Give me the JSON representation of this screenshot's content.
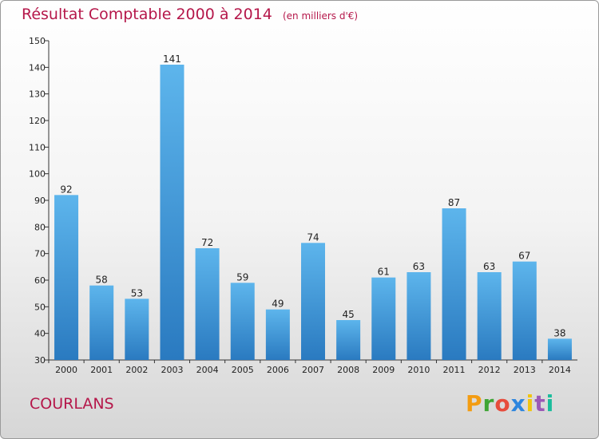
{
  "title": "Résultat Comptable 2000 à 2014",
  "subtitle": "(en milliers d'€)",
  "commune": "COURLANS",
  "logo": {
    "letters": [
      "P",
      "r",
      "o",
      "x",
      "i",
      "t",
      "i"
    ],
    "colors": [
      "#f39c12",
      "#3fa535",
      "#e74c3c",
      "#2e86de",
      "#f1c40f",
      "#9b59b6",
      "#1abc9c"
    ]
  },
  "colors": {
    "bar_light": "#5db5ec",
    "bar_dark": "#2a7ac0",
    "title": "#b5174a"
  },
  "chart_data": {
    "type": "bar",
    "title": "Résultat Comptable 2000 à 2014",
    "subtitle": "(en milliers d'€)",
    "categories": [
      "2000",
      "2001",
      "2002",
      "2003",
      "2004",
      "2005",
      "2006",
      "2007",
      "2008",
      "2009",
      "2010",
      "2011",
      "2012",
      "2013",
      "2014"
    ],
    "values": [
      92,
      58,
      53,
      141,
      72,
      59,
      49,
      74,
      45,
      61,
      63,
      87,
      63,
      67,
      38
    ],
    "ylim": [
      30,
      150
    ],
    "yticks": [
      30,
      40,
      50,
      60,
      70,
      80,
      90,
      100,
      110,
      120,
      130,
      140,
      150
    ],
    "grid": false
  }
}
